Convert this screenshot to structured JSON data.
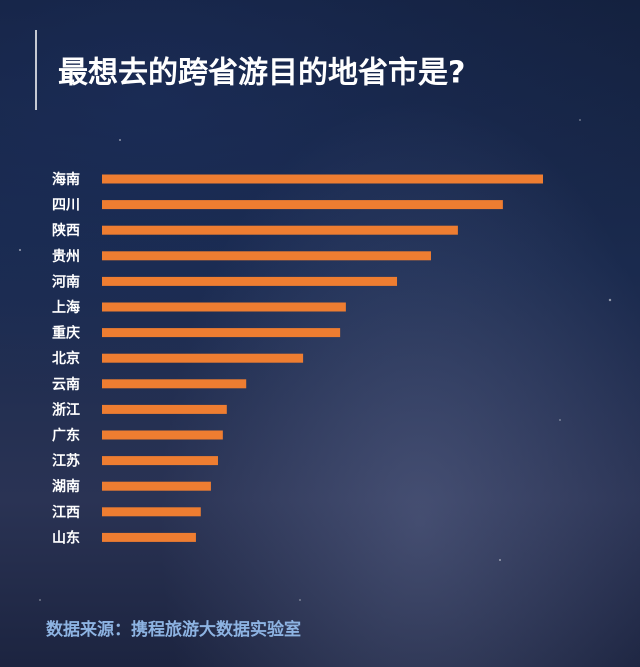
{
  "chart_data": {
    "type": "bar",
    "orientation": "horizontal",
    "title": "最想去的跨省游目的地省市是?",
    "source": "数据来源：携程旅游大数据实验室",
    "categories": [
      "海南",
      "四川",
      "陕西",
      "贵州",
      "河南",
      "上海",
      "重庆",
      "北京",
      "云南",
      "浙江",
      "广东",
      "江苏",
      "湖南",
      "江西",
      "山东"
    ],
    "values": [
      100,
      90.9,
      80.7,
      74.6,
      66.9,
      55.3,
      54.0,
      45.6,
      32.7,
      28.3,
      27.4,
      26.3,
      24.7,
      22.4,
      21.3
    ],
    "color": "#ee7d31",
    "xlim": [
      0,
      100
    ]
  }
}
